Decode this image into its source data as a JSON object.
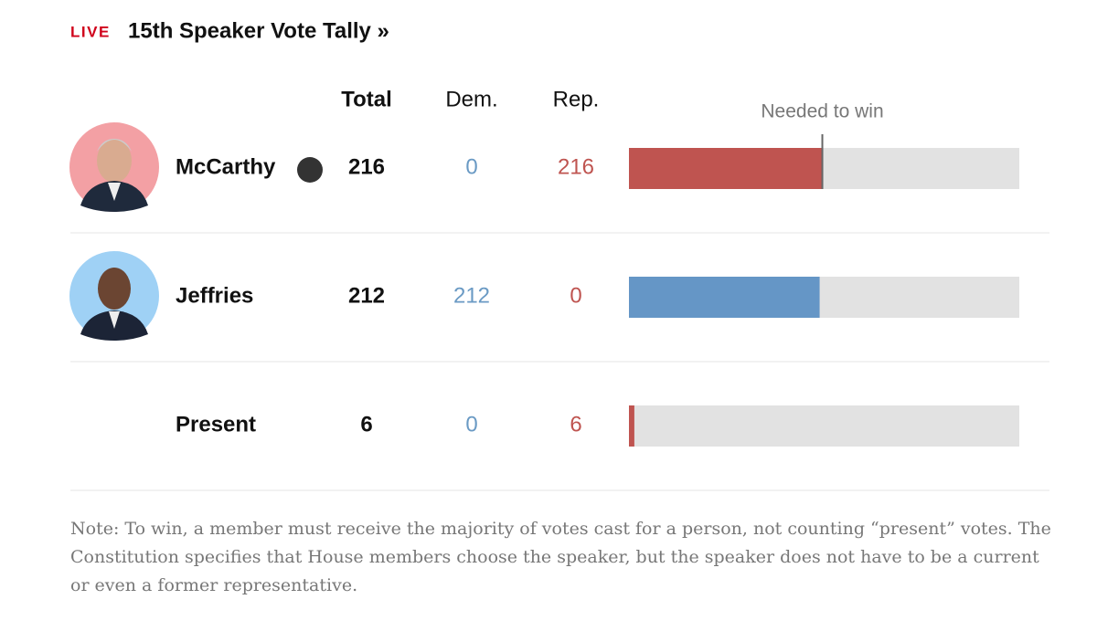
{
  "header": {
    "live": "LIVE",
    "title": "15th Speaker Vote Tally »"
  },
  "table": {
    "columns": [
      "Total",
      "Dem.",
      "Rep."
    ],
    "rows": [
      {
        "name": "McCarthy",
        "total": 216,
        "dem": 0,
        "rep": 216,
        "color": "#bf5450"
      },
      {
        "name": "Jeffries",
        "total": 212,
        "dem": 212,
        "rep": 0,
        "color": "#6596c6"
      },
      {
        "name": "Present",
        "total": 6,
        "dem": 0,
        "rep": 6,
        "color": "#bf5450"
      }
    ],
    "needed_to_win": {
      "label": "Needed to win",
      "value": 215
    }
  },
  "note": "Note: To win, a member must receive the majority of votes cast for a person, not counting “present” votes. The Constitution specifies that House members choose the speaker, but the speaker does not have to be a current or even a former representative."
}
